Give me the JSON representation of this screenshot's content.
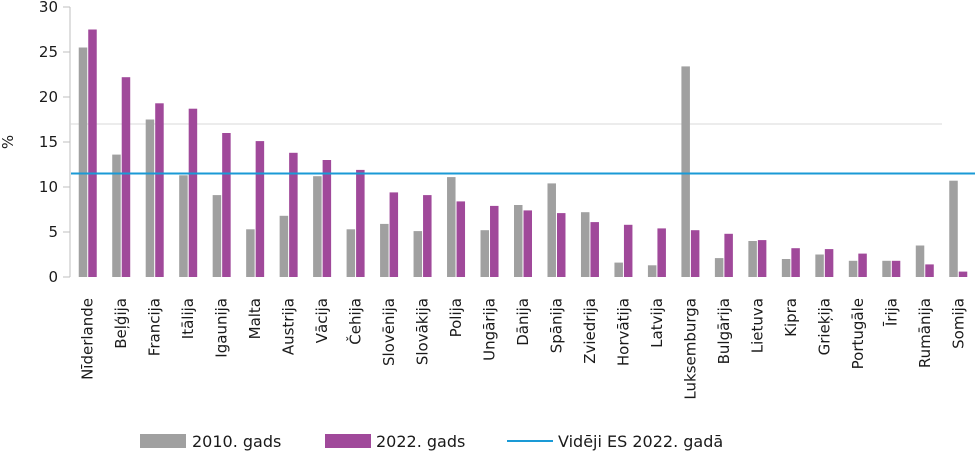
{
  "chart_data": {
    "type": "bar",
    "ylabel": "%",
    "ylim": [
      0,
      30
    ],
    "yticks": [
      0,
      5,
      10,
      15,
      20,
      25,
      30
    ],
    "grid": false,
    "legend_position": "bottom",
    "categories": [
      "Nīderlande",
      "Beļģija",
      "Francija",
      "Itālija",
      "Igaunija",
      "Malta",
      "Austrija",
      "Vācija",
      "Čehija",
      "Slovēnija",
      "Slovākija",
      "Polija",
      "Ungārija",
      "Dānija",
      "Spānija",
      "Zviedrija",
      "Horvātija",
      "Latvija",
      "Luksemburga",
      "Bulgārija",
      "Lietuva",
      "Kipra",
      "Grieķija",
      "Portugāle",
      "Īrija",
      "Rumānija",
      "Somija"
    ],
    "series": [
      {
        "name": "2010. gads",
        "color": "#a0a0a0",
        "values": [
          25.5,
          13.6,
          17.5,
          11.3,
          9.1,
          5.3,
          6.8,
          11.2,
          5.3,
          5.9,
          5.1,
          11.1,
          5.2,
          8.0,
          10.4,
          7.2,
          1.6,
          1.3,
          23.4,
          2.1,
          4.0,
          2.0,
          2.5,
          1.8,
          1.8,
          3.5,
          10.7
        ]
      },
      {
        "name": "2022. gads",
        "color": "#a0499a",
        "values": [
          27.5,
          22.2,
          19.3,
          18.7,
          16.0,
          15.1,
          13.8,
          13.0,
          11.9,
          9.4,
          9.1,
          8.4,
          7.9,
          7.4,
          7.1,
          6.1,
          5.8,
          5.4,
          5.2,
          4.8,
          4.1,
          3.2,
          3.1,
          2.6,
          1.8,
          1.4,
          0.6
        ]
      }
    ],
    "reference_line": {
      "name": "Vidēji ES 2022. gadā",
      "value": 11.5,
      "color": "#1a9ad6"
    }
  }
}
